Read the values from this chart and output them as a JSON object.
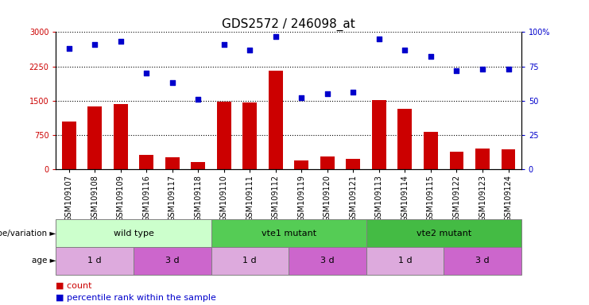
{
  "title": "GDS2572 / 246098_at",
  "samples": [
    "GSM109107",
    "GSM109108",
    "GSM109109",
    "GSM109116",
    "GSM109117",
    "GSM109118",
    "GSM109110",
    "GSM109111",
    "GSM109112",
    "GSM109119",
    "GSM109120",
    "GSM109121",
    "GSM109113",
    "GSM109114",
    "GSM109115",
    "GSM109122",
    "GSM109123",
    "GSM109124"
  ],
  "counts": [
    1050,
    1380,
    1430,
    310,
    270,
    150,
    1470,
    1460,
    2150,
    200,
    280,
    230,
    1510,
    1320,
    820,
    380,
    460,
    430
  ],
  "percentiles": [
    88,
    91,
    93,
    70,
    63,
    51,
    91,
    87,
    97,
    52,
    55,
    56,
    95,
    87,
    82,
    72,
    73,
    73
  ],
  "ylim_left": [
    0,
    3000
  ],
  "ylim_right": [
    0,
    100
  ],
  "yticks_left": [
    0,
    750,
    1500,
    2250,
    3000
  ],
  "yticks_right": [
    0,
    25,
    50,
    75,
    100
  ],
  "bar_color": "#cc0000",
  "dot_color": "#0000cc",
  "genotype_groups": [
    {
      "label": "wild type",
      "start": 0,
      "end": 6,
      "color": "#ccffcc"
    },
    {
      "label": "vte1 mutant",
      "start": 6,
      "end": 12,
      "color": "#55cc55"
    },
    {
      "label": "vte2 mutant",
      "start": 12,
      "end": 18,
      "color": "#44bb44"
    }
  ],
  "age_groups": [
    {
      "label": "1 d",
      "start": 0,
      "end": 3,
      "color": "#ddaadd"
    },
    {
      "label": "3 d",
      "start": 3,
      "end": 6,
      "color": "#cc66cc"
    },
    {
      "label": "1 d",
      "start": 6,
      "end": 9,
      "color": "#ddaadd"
    },
    {
      "label": "3 d",
      "start": 9,
      "end": 12,
      "color": "#cc66cc"
    },
    {
      "label": "1 d",
      "start": 12,
      "end": 15,
      "color": "#ddaadd"
    },
    {
      "label": "3 d",
      "start": 15,
      "end": 18,
      "color": "#cc66cc"
    }
  ],
  "legend_count_color": "#cc0000",
  "legend_dot_color": "#0000cc",
  "background_color": "#ffffff",
  "title_fontsize": 11,
  "tick_label_fontsize": 7
}
